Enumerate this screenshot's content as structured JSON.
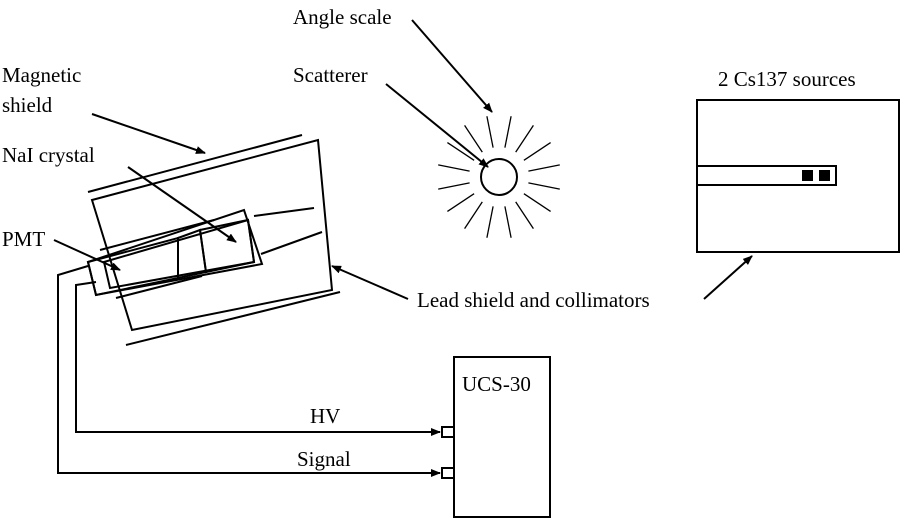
{
  "labels": {
    "angle_scale": "Angle scale",
    "scatterer": "Scatterer",
    "magnetic_shield_line1": "Magnetic",
    "magnetic_shield_line2": "shield",
    "nai_crystal": "NaI crystal",
    "pmt": "PMT",
    "lead_shield": "Lead shield and collimators",
    "sources": "2 Cs137 sources",
    "analyzer": "UCS-30",
    "hv": "HV",
    "signal": "Signal"
  }
}
